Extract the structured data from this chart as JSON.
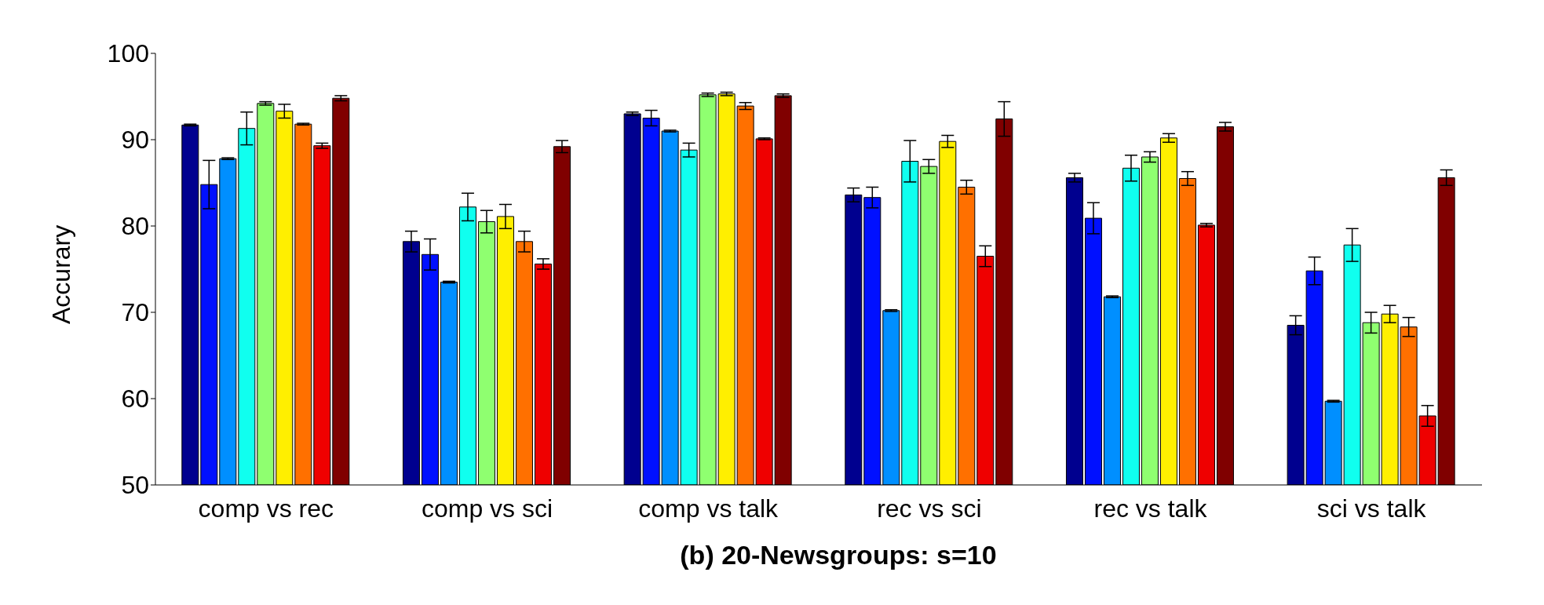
{
  "chart_data": {
    "type": "bar",
    "title": "(b) 20-Newsgroups: s=10",
    "ylabel": "Accurary",
    "categories": [
      "comp vs rec",
      "comp vs sci",
      "comp vs talk",
      "rec vs sci",
      "rec vs talk",
      "sci vs talk"
    ],
    "series": [
      {
        "color": "#00008f",
        "values": [
          91.7,
          78.2,
          93.0,
          83.6,
          85.6,
          68.5
        ],
        "errors": [
          0.1,
          1.2,
          0.2,
          0.8,
          0.5,
          1.1
        ]
      },
      {
        "color": "#0010ff",
        "values": [
          84.8,
          76.7,
          92.5,
          83.3,
          80.9,
          74.8
        ],
        "errors": [
          2.8,
          1.8,
          0.9,
          1.2,
          1.8,
          1.6
        ]
      },
      {
        "color": "#008fff",
        "values": [
          87.8,
          73.5,
          91.0,
          70.2,
          71.8,
          59.7
        ],
        "errors": [
          0.1,
          0.1,
          0.1,
          0.1,
          0.1,
          0.1
        ]
      },
      {
        "color": "#10ffef",
        "values": [
          91.3,
          82.2,
          88.8,
          87.5,
          86.7,
          77.8
        ],
        "errors": [
          1.9,
          1.6,
          0.8,
          2.4,
          1.5,
          1.9
        ]
      },
      {
        "color": "#8fff70",
        "values": [
          94.2,
          80.5,
          95.2,
          86.9,
          88.0,
          68.8
        ],
        "errors": [
          0.2,
          1.3,
          0.2,
          0.8,
          0.6,
          1.2
        ]
      },
      {
        "color": "#ffef00",
        "values": [
          93.3,
          81.1,
          95.3,
          89.8,
          90.2,
          69.8
        ],
        "errors": [
          0.8,
          1.4,
          0.2,
          0.7,
          0.5,
          1.0
        ]
      },
      {
        "color": "#ff7000",
        "values": [
          91.8,
          78.2,
          93.9,
          84.5,
          85.5,
          68.3
        ],
        "errors": [
          0.1,
          1.2,
          0.4,
          0.8,
          0.8,
          1.1
        ]
      },
      {
        "color": "#ef0000",
        "values": [
          89.3,
          75.6,
          90.1,
          76.5,
          80.1,
          58.0
        ],
        "errors": [
          0.3,
          0.6,
          0.1,
          1.2,
          0.2,
          1.2
        ]
      },
      {
        "color": "#800000",
        "values": [
          94.8,
          89.2,
          95.1,
          92.4,
          91.5,
          85.6
        ],
        "errors": [
          0.3,
          0.7,
          0.2,
          2.0,
          0.5,
          0.9
        ]
      }
    ],
    "ylim": [
      50,
      100
    ],
    "yticks": [
      50,
      60,
      70,
      80,
      90,
      100
    ],
    "grid": false,
    "legend": false
  }
}
